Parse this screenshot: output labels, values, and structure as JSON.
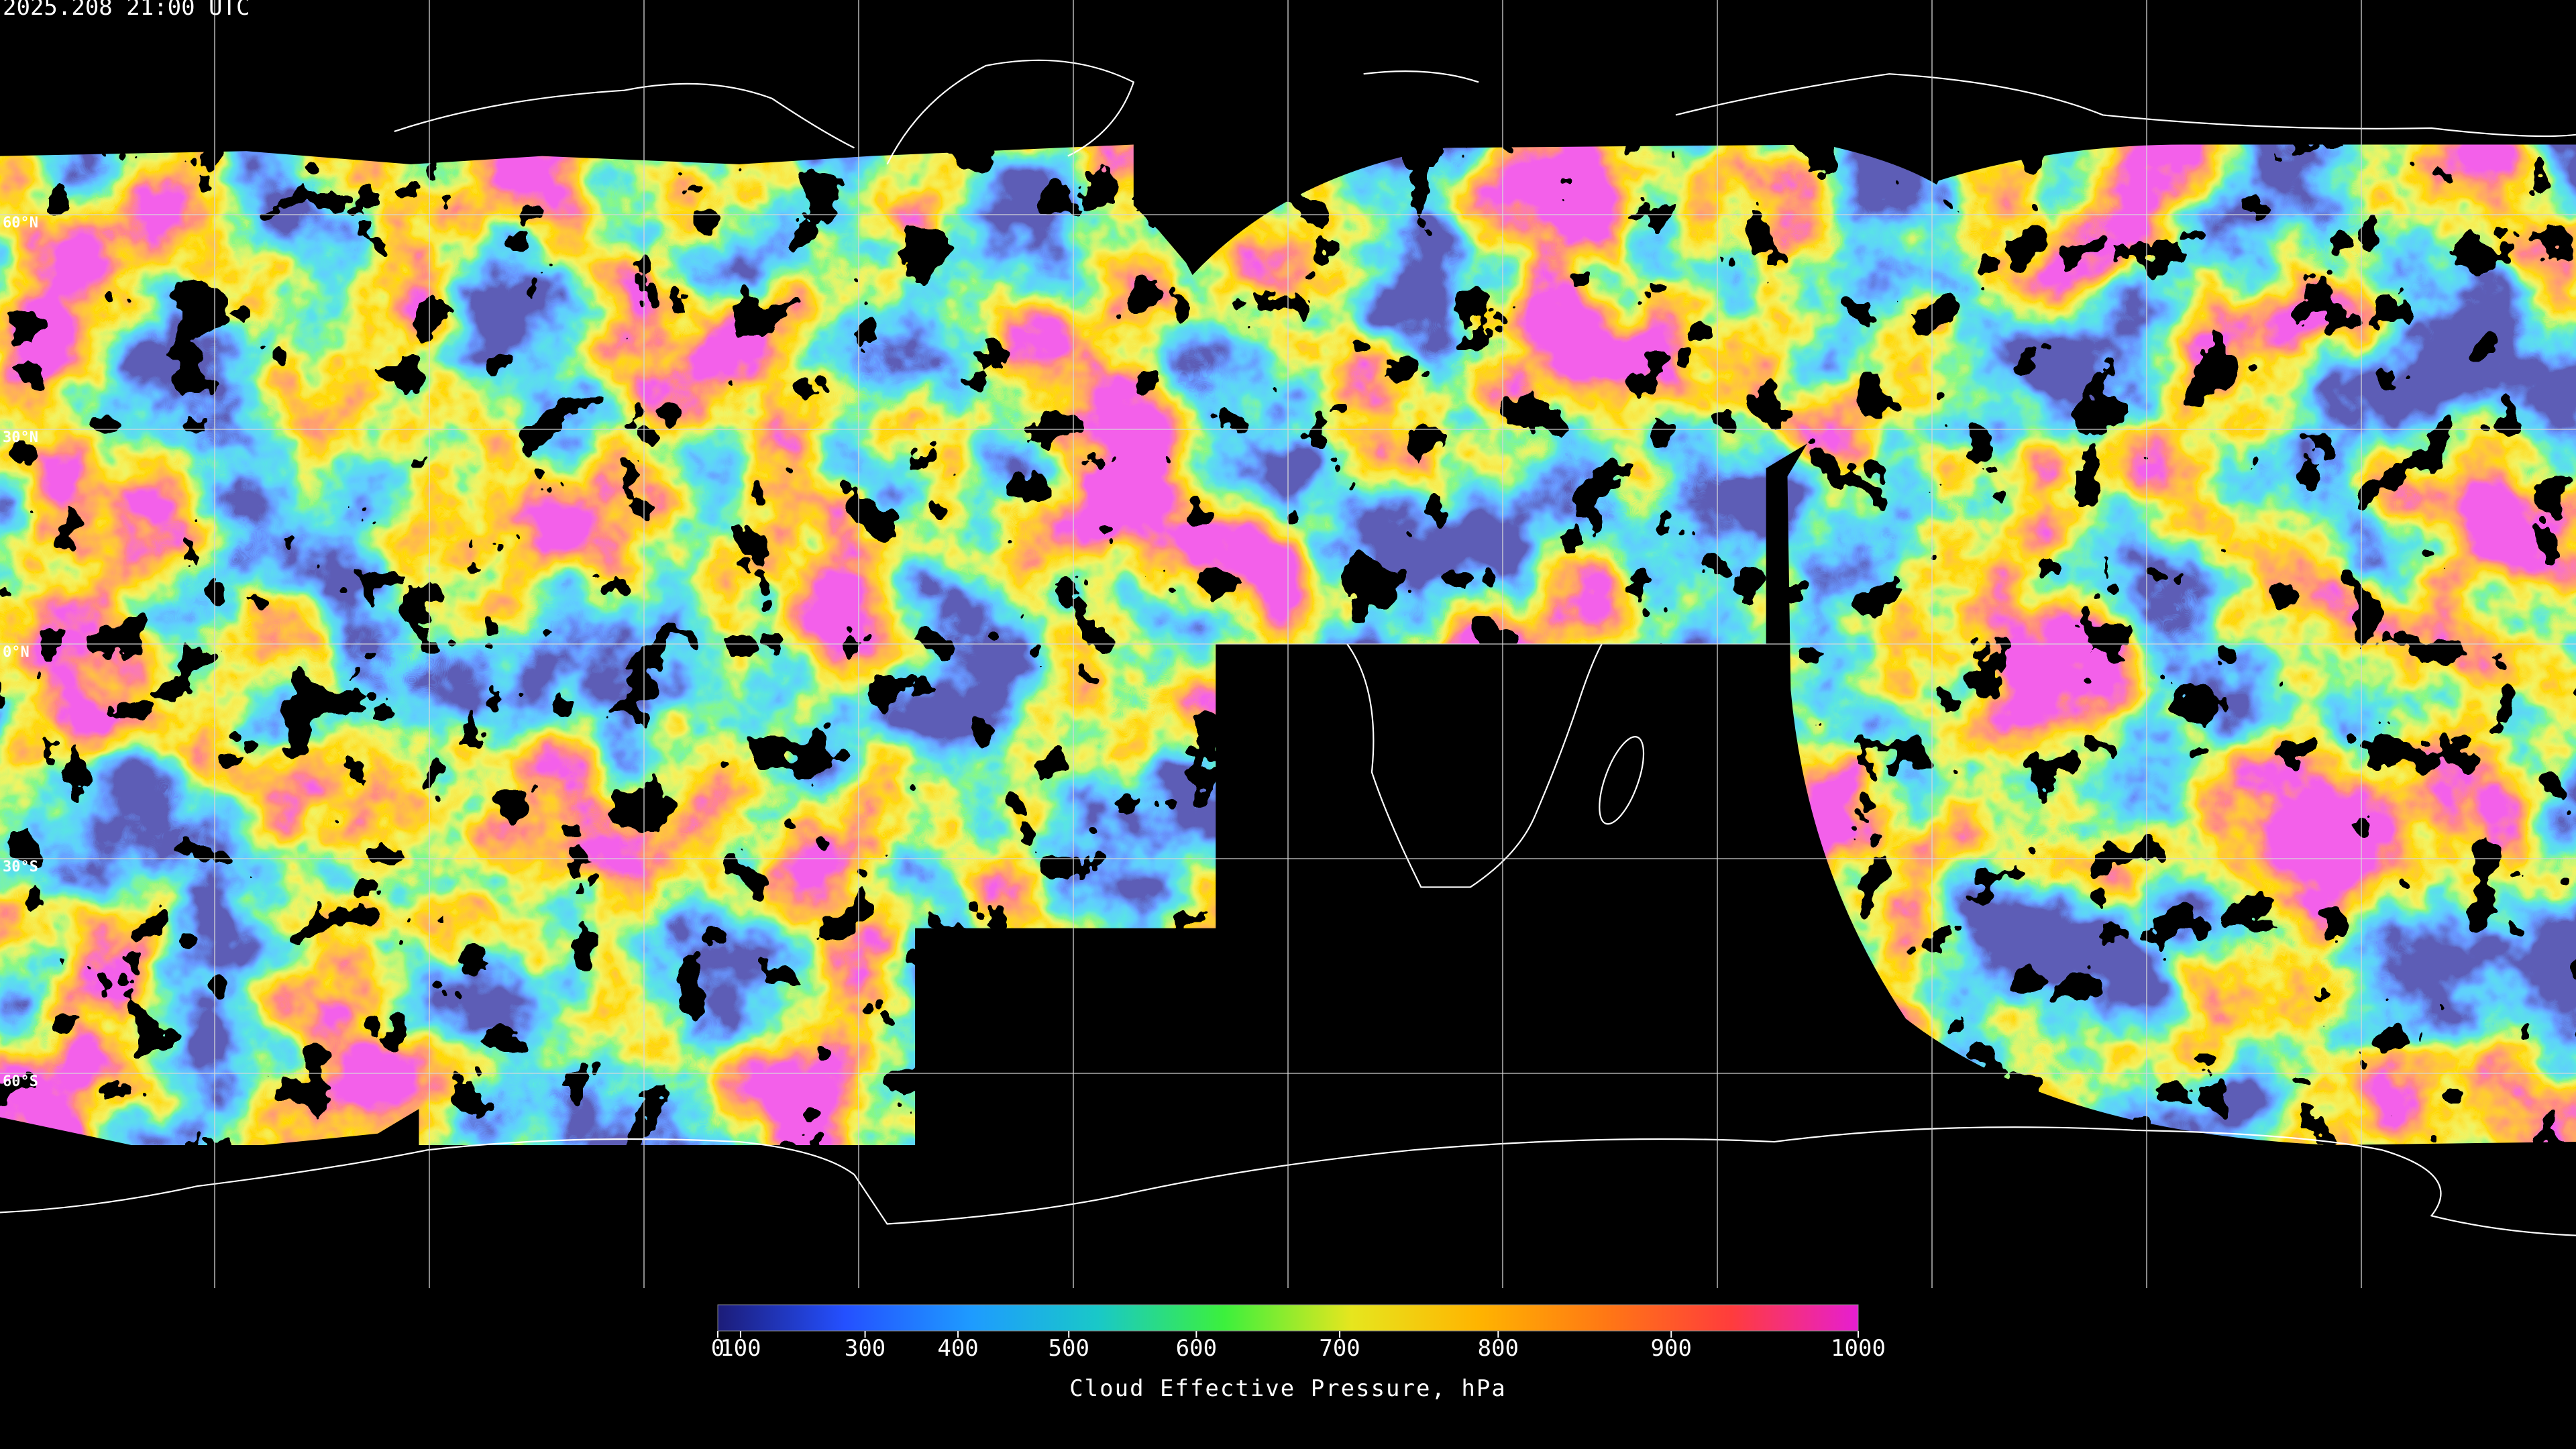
{
  "header": {
    "title": "2025.208 21:00 UTC"
  },
  "chart_data": {
    "type": "map",
    "projection": "equirectangular",
    "xlim": [
      -180,
      180
    ],
    "ylim": [
      -90,
      90
    ],
    "lon_lines": [
      -150,
      -120,
      -90,
      -60,
      -30,
      0,
      30,
      60,
      90,
      120,
      150
    ],
    "lat_lines": [
      {
        "value": 60,
        "label": "60°N"
      },
      {
        "value": 30,
        "label": "30°N"
      },
      {
        "value": 0,
        "label": "0°N"
      },
      {
        "value": -30,
        "label": "30°S"
      },
      {
        "value": -60,
        "label": "60°S"
      }
    ],
    "colorbar": {
      "label": "Cloud Effective Pressure, hPa",
      "range": [
        0,
        1000
      ],
      "ticks": [
        0,
        100,
        300,
        400,
        500,
        600,
        700,
        800,
        900,
        1000
      ],
      "scale": "power",
      "exponent": 1.7,
      "colors": [
        "#1c1c78",
        "#2450ff",
        "#1e9bff",
        "#19c8c8",
        "#3cf03c",
        "#e6e61e",
        "#ffb400",
        "#ff7814",
        "#ff3c3c",
        "#e61ed2"
      ]
    }
  }
}
